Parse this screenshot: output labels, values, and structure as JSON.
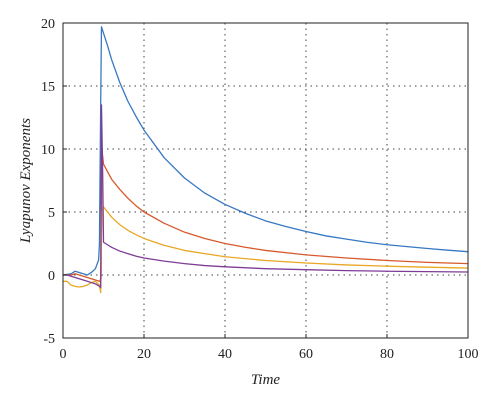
{
  "chart_data": {
    "type": "line",
    "xlabel": "Time",
    "ylabel": "Lyapunov Exponents",
    "xlim": [
      0,
      100
    ],
    "ylim": [
      -5,
      20
    ],
    "x_ticks": [
      0,
      20,
      40,
      60,
      80,
      100
    ],
    "y_ticks": [
      -5,
      0,
      5,
      10,
      15,
      20
    ],
    "grid": true,
    "series": [
      {
        "color": "#3778c2",
        "points": [
          [
            0,
            0
          ],
          [
            1,
            0.05
          ],
          [
            2,
            0.1
          ],
          [
            3,
            0.3
          ],
          [
            4,
            0.2
          ],
          [
            5,
            0.1
          ],
          [
            6,
            0
          ],
          [
            7,
            0.2
          ],
          [
            8,
            0.5
          ],
          [
            8.8,
            1.2
          ],
          [
            9,
            2.5
          ],
          [
            9.2,
            10
          ],
          [
            9.5,
            19.7
          ],
          [
            10,
            19.2
          ],
          [
            11,
            18.2
          ],
          [
            12,
            17.1
          ],
          [
            14,
            15.3
          ],
          [
            16,
            13.8
          ],
          [
            18,
            12.6
          ],
          [
            20,
            11.5
          ],
          [
            25,
            9.3
          ],
          [
            30,
            7.7
          ],
          [
            35,
            6.5
          ],
          [
            40,
            5.6
          ],
          [
            45,
            4.9
          ],
          [
            50,
            4.3
          ],
          [
            55,
            3.85
          ],
          [
            60,
            3.45
          ],
          [
            65,
            3.1
          ],
          [
            70,
            2.85
          ],
          [
            75,
            2.6
          ],
          [
            80,
            2.4
          ],
          [
            85,
            2.25
          ],
          [
            90,
            2.1
          ],
          [
            95,
            1.97
          ],
          [
            100,
            1.85
          ]
        ]
      },
      {
        "color": "#d65a2b",
        "points": [
          [
            0,
            0
          ],
          [
            1,
            0
          ],
          [
            2,
            0
          ],
          [
            3,
            0.1
          ],
          [
            4,
            0
          ],
          [
            5,
            -0.1
          ],
          [
            6,
            -0.2
          ],
          [
            7,
            -0.3
          ],
          [
            8,
            -0.4
          ],
          [
            9,
            -0.5
          ],
          [
            9.4,
            -0.3
          ],
          [
            9.6,
            10
          ],
          [
            10,
            8.8
          ],
          [
            11,
            8.2
          ],
          [
            12,
            7.6
          ],
          [
            14,
            6.8
          ],
          [
            16,
            6.1
          ],
          [
            18,
            5.5
          ],
          [
            20,
            5.0
          ],
          [
            25,
            4.1
          ],
          [
            30,
            3.4
          ],
          [
            35,
            2.9
          ],
          [
            40,
            2.5
          ],
          [
            45,
            2.2
          ],
          [
            50,
            1.95
          ],
          [
            60,
            1.6
          ],
          [
            70,
            1.35
          ],
          [
            80,
            1.15
          ],
          [
            90,
            1.0
          ],
          [
            100,
            0.9
          ]
        ]
      },
      {
        "color": "#e8a724",
        "points": [
          [
            0,
            -0.5
          ],
          [
            1,
            -0.5
          ],
          [
            2,
            -0.8
          ],
          [
            3,
            -0.9
          ],
          [
            4,
            -0.95
          ],
          [
            5,
            -0.9
          ],
          [
            6,
            -0.8
          ],
          [
            7,
            -0.6
          ],
          [
            8,
            -0.5
          ],
          [
            9,
            -0.8
          ],
          [
            9.3,
            -1.4
          ],
          [
            9.6,
            5
          ],
          [
            10,
            5.4
          ],
          [
            11,
            5.0
          ],
          [
            12,
            4.6
          ],
          [
            14,
            4.0
          ],
          [
            16,
            3.55
          ],
          [
            18,
            3.2
          ],
          [
            20,
            2.9
          ],
          [
            25,
            2.35
          ],
          [
            30,
            1.95
          ],
          [
            35,
            1.7
          ],
          [
            40,
            1.45
          ],
          [
            45,
            1.3
          ],
          [
            50,
            1.15
          ],
          [
            60,
            0.95
          ],
          [
            70,
            0.8
          ],
          [
            80,
            0.7
          ],
          [
            90,
            0.62
          ],
          [
            100,
            0.55
          ]
        ]
      },
      {
        "color": "#7e3c96",
        "points": [
          [
            0,
            0
          ],
          [
            1,
            0
          ],
          [
            2,
            -0.1
          ],
          [
            3,
            -0.2
          ],
          [
            4,
            -0.3
          ],
          [
            5,
            -0.4
          ],
          [
            6,
            -0.5
          ],
          [
            7,
            -0.6
          ],
          [
            8,
            -0.7
          ],
          [
            9,
            -0.9
          ],
          [
            9.3,
            -1.0
          ],
          [
            9.5,
            13.5
          ],
          [
            9.8,
            8
          ],
          [
            10,
            2.6
          ],
          [
            11,
            2.4
          ],
          [
            12,
            2.2
          ],
          [
            14,
            1.9
          ],
          [
            16,
            1.7
          ],
          [
            18,
            1.5
          ],
          [
            20,
            1.35
          ],
          [
            25,
            1.1
          ],
          [
            30,
            0.9
          ],
          [
            35,
            0.75
          ],
          [
            40,
            0.65
          ],
          [
            50,
            0.5
          ],
          [
            60,
            0.42
          ],
          [
            70,
            0.35
          ],
          [
            80,
            0.3
          ],
          [
            90,
            0.27
          ],
          [
            100,
            0.24
          ]
        ]
      }
    ]
  }
}
